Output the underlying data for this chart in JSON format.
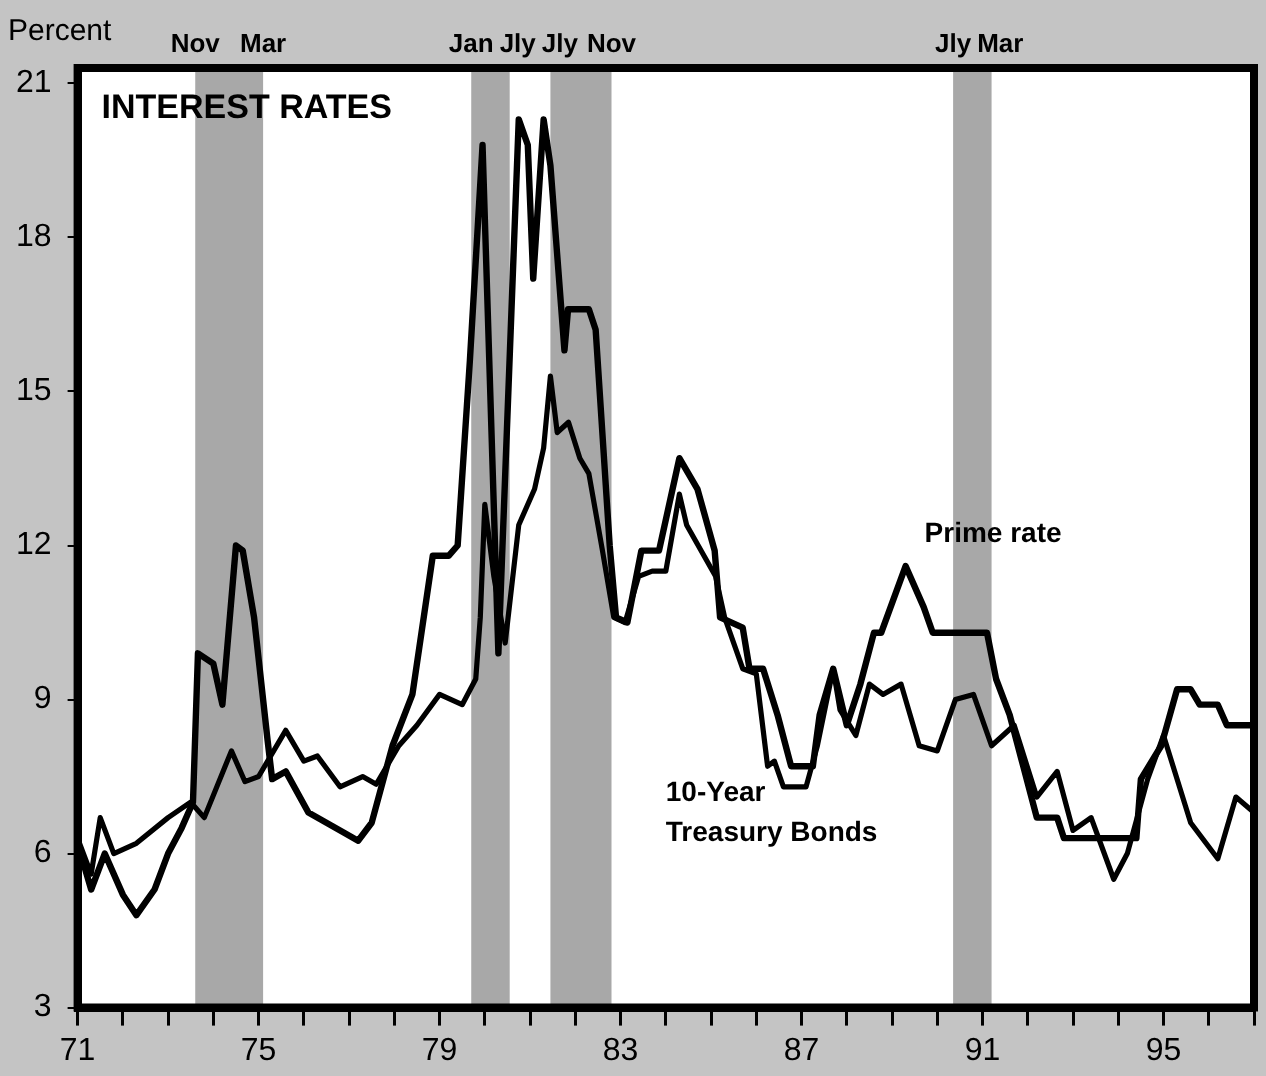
{
  "chart_data": {
    "type": "line",
    "title": "INTEREST RATES",
    "ylabel": "Percent",
    "grid": false,
    "legend": false,
    "marker": "none",
    "line_style": "solid",
    "xlim": [
      1971,
      1997
    ],
    "ylim": [
      3,
      21.3
    ],
    "yticks": [
      3,
      6,
      9,
      12,
      15,
      18,
      21
    ],
    "xticks": [
      {
        "value": 1971,
        "label": "71"
      },
      {
        "value": 1972,
        "label": null
      },
      {
        "value": 1973,
        "label": null
      },
      {
        "value": 1974,
        "label": null
      },
      {
        "value": 1975,
        "label": "75"
      },
      {
        "value": 1976,
        "label": null
      },
      {
        "value": 1977,
        "label": null
      },
      {
        "value": 1978,
        "label": null
      },
      {
        "value": 1979,
        "label": "79"
      },
      {
        "value": 1980,
        "label": null
      },
      {
        "value": 1981,
        "label": null
      },
      {
        "value": 1982,
        "label": null
      },
      {
        "value": 1983,
        "label": "83"
      },
      {
        "value": 1984,
        "label": null
      },
      {
        "value": 1985,
        "label": null
      },
      {
        "value": 1986,
        "label": null
      },
      {
        "value": 1987,
        "label": "87"
      },
      {
        "value": 1988,
        "label": null
      },
      {
        "value": 1989,
        "label": null
      },
      {
        "value": 1990,
        "label": null
      },
      {
        "value": 1991,
        "label": "91"
      },
      {
        "value": 1992,
        "label": null
      },
      {
        "value": 1993,
        "label": null
      },
      {
        "value": 1994,
        "label": null
      },
      {
        "value": 1995,
        "label": "95"
      },
      {
        "value": 1996,
        "label": null
      },
      {
        "value": 1997,
        "label": null
      }
    ],
    "bands": [
      {
        "axis": "x",
        "from": 1973.6,
        "to": 1975.1,
        "color": "#a8a8a8"
      },
      {
        "axis": "x",
        "from": 1979.7,
        "to": 1980.55,
        "color": "#a8a8a8"
      },
      {
        "axis": "x",
        "from": 1981.45,
        "to": 1982.8,
        "color": "#a8a8a8"
      },
      {
        "axis": "x",
        "from": 1990.35,
        "to": 1991.2,
        "color": "#a8a8a8"
      }
    ],
    "annotations": [
      "Nov",
      "Mar",
      "Jan",
      "Jly",
      "Jly",
      "Nov",
      "Jly",
      "Mar"
    ],
    "series": [
      {
        "name": "Prime rate",
        "color": "#000000",
        "x": [
          1971.0,
          1971.3,
          1971.6,
          1972.0,
          1972.3,
          1972.7,
          1973.0,
          1973.3,
          1973.55,
          1973.66,
          1974.0,
          1974.2,
          1974.5,
          1974.65,
          1974.9,
          1975.2,
          1975.3,
          1975.6,
          1976.1,
          1976.9,
          1977.2,
          1977.5,
          1977.96,
          1978.4,
          1978.85,
          1979.2,
          1979.4,
          1979.67,
          1979.95,
          1980.3,
          1980.75,
          1980.95,
          1981.07,
          1981.3,
          1981.45,
          1981.76,
          1981.84,
          1982.3,
          1982.45,
          1982.76,
          1982.9,
          1983.15,
          1983.46,
          1983.85,
          1984.3,
          1984.7,
          1985.08,
          1985.2,
          1985.7,
          1985.85,
          1986.15,
          1986.47,
          1986.77,
          1987.25,
          1987.4,
          1987.7,
          1988.0,
          1988.3,
          1988.6,
          1988.76,
          1989.3,
          1989.7,
          1989.9,
          1991.1,
          1991.3,
          1991.6,
          1991.9,
          1992.2,
          1992.65,
          1992.8,
          1994.4,
          1994.5,
          1994.95,
          1995.3,
          1995.6,
          1995.8,
          1996.2,
          1996.4,
          1997.0
        ],
        "values": [
          6.2,
          5.3,
          6.0,
          5.2,
          4.8,
          5.3,
          6.0,
          6.5,
          7.0,
          9.9,
          9.7,
          8.9,
          12.0,
          11.9,
          10.6,
          8.2,
          7.45,
          7.6,
          6.8,
          6.4,
          6.25,
          6.6,
          8.1,
          9.1,
          11.8,
          11.8,
          12.0,
          15.6,
          19.8,
          9.9,
          20.3,
          19.8,
          17.2,
          20.3,
          19.4,
          15.8,
          16.6,
          16.6,
          16.2,
          12.0,
          10.6,
          10.5,
          11.9,
          11.9,
          13.7,
          13.1,
          11.9,
          10.6,
          10.4,
          9.6,
          9.6,
          8.7,
          7.7,
          7.7,
          8.7,
          9.6,
          8.5,
          9.3,
          10.3,
          10.3,
          11.6,
          10.8,
          10.3,
          10.3,
          9.4,
          8.7,
          7.7,
          6.7,
          6.7,
          6.3,
          6.3,
          7.45,
          8.1,
          9.2,
          9.2,
          8.9,
          8.9,
          8.5,
          8.5
        ]
      },
      {
        "name": "10-Year Treasury Bonds",
        "color": "#000000",
        "x": [
          1971.0,
          1971.3,
          1971.5,
          1971.8,
          1972.3,
          1973.0,
          1973.5,
          1973.8,
          1974.4,
          1974.7,
          1975.0,
          1975.6,
          1976.0,
          1976.3,
          1976.8,
          1977.3,
          1977.6,
          1978.1,
          1978.5,
          1979.0,
          1979.5,
          1979.8,
          1979.9,
          1980.0,
          1980.2,
          1980.45,
          1980.75,
          1981.1,
          1981.3,
          1981.45,
          1981.6,
          1981.85,
          1982.1,
          1982.3,
          1982.6,
          1982.85,
          1983.1,
          1983.4,
          1983.7,
          1984.0,
          1984.3,
          1984.46,
          1985.1,
          1985.3,
          1985.7,
          1986.0,
          1986.25,
          1986.4,
          1986.6,
          1987.1,
          1987.35,
          1987.7,
          1987.85,
          1988.2,
          1988.5,
          1988.8,
          1989.2,
          1989.6,
          1990.0,
          1990.4,
          1990.8,
          1991.2,
          1991.7,
          1992.2,
          1992.65,
          1993.0,
          1993.4,
          1993.9,
          1994.2,
          1994.65,
          1995.0,
          1995.6,
          1996.2,
          1996.6,
          1997.0
        ],
        "values": [
          6.3,
          5.6,
          6.7,
          6.0,
          6.2,
          6.7,
          7.0,
          6.7,
          8.0,
          7.4,
          7.5,
          8.4,
          7.8,
          7.9,
          7.3,
          7.5,
          7.35,
          8.1,
          8.5,
          9.1,
          8.9,
          9.4,
          10.6,
          12.8,
          11.4,
          10.1,
          12.4,
          13.1,
          13.9,
          15.3,
          14.2,
          14.4,
          13.7,
          13.4,
          11.9,
          10.6,
          10.5,
          11.4,
          11.5,
          11.5,
          13.0,
          12.4,
          11.4,
          10.6,
          9.6,
          9.5,
          7.7,
          7.8,
          7.3,
          7.3,
          8.1,
          9.6,
          8.8,
          8.3,
          9.3,
          9.1,
          9.3,
          8.1,
          8.0,
          9.0,
          9.1,
          8.1,
          8.5,
          7.1,
          7.6,
          6.45,
          6.7,
          5.5,
          6.0,
          7.45,
          8.3,
          6.6,
          5.9,
          7.1,
          6.8
        ]
      }
    ]
  }
}
